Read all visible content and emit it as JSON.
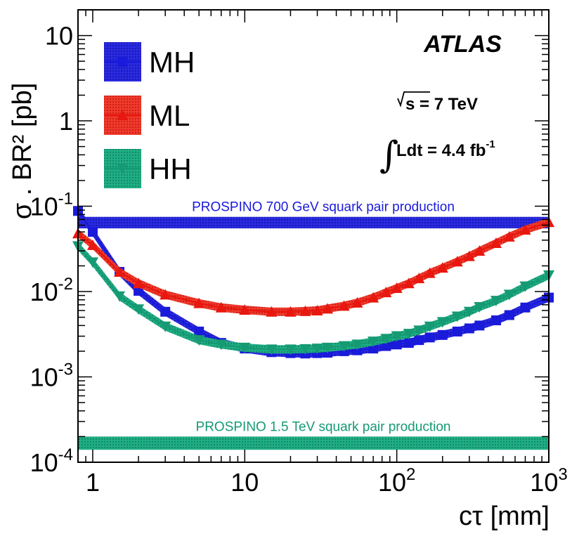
{
  "chart_data": {
    "type": "line",
    "title": "",
    "xlabel": "cτ [mm]",
    "ylabel": "σ . BR² [pb]",
    "xscale": "log",
    "yscale": "log",
    "xlim": [
      0.8,
      1000
    ],
    "ylim": [
      0.0001,
      20
    ],
    "x_ticks": [
      {
        "value": 1,
        "base": "1",
        "exp": ""
      },
      {
        "value": 10,
        "base": "10",
        "exp": ""
      },
      {
        "value": 100,
        "base": "10",
        "exp": "2"
      },
      {
        "value": 1000,
        "base": "10",
        "exp": "3"
      }
    ],
    "y_ticks": [
      {
        "value": 0.0001,
        "base": "10",
        "exp": "-4"
      },
      {
        "value": 0.001,
        "base": "10",
        "exp": "-3"
      },
      {
        "value": 0.01,
        "base": "10",
        "exp": "-2"
      },
      {
        "value": 0.1,
        "base": "10",
        "exp": "-1"
      },
      {
        "value": 1,
        "base": "1",
        "exp": ""
      },
      {
        "value": 10,
        "base": "10",
        "exp": ""
      }
    ],
    "series": [
      {
        "name": "MH",
        "color": "#1a1adb",
        "marker": "square",
        "x": [
          0.8,
          1,
          1.5,
          2,
          3,
          5,
          7,
          10,
          15,
          20,
          25,
          30,
          35,
          45,
          55,
          70,
          85,
          100,
          120,
          140,
          165,
          200,
          250,
          300,
          350,
          450,
          550,
          700,
          1000
        ],
        "values": [
          0.088,
          0.05,
          0.017,
          0.0102,
          0.0058,
          0.0034,
          0.0025,
          0.00215,
          0.00195,
          0.0019,
          0.00188,
          0.0019,
          0.00192,
          0.002,
          0.00205,
          0.00215,
          0.0023,
          0.0024,
          0.0025,
          0.0027,
          0.0029,
          0.0031,
          0.0034,
          0.0037,
          0.004,
          0.0046,
          0.0053,
          0.0065,
          0.0085
        ]
      },
      {
        "name": "ML",
        "color": "#e8170f",
        "marker": "triangle-up",
        "x": [
          0.8,
          1,
          1.5,
          2,
          3,
          5,
          7,
          10,
          15,
          20,
          25,
          30,
          35,
          45,
          55,
          70,
          85,
          100,
          120,
          140,
          165,
          200,
          250,
          300,
          350,
          450,
          550,
          700,
          1000
        ],
        "values": [
          0.048,
          0.035,
          0.017,
          0.0125,
          0.0092,
          0.0073,
          0.0065,
          0.0061,
          0.0058,
          0.0058,
          0.0059,
          0.006,
          0.0063,
          0.0068,
          0.0074,
          0.0085,
          0.0098,
          0.011,
          0.0125,
          0.0143,
          0.0165,
          0.019,
          0.0225,
          0.026,
          0.03,
          0.037,
          0.044,
          0.053,
          0.065
        ]
      },
      {
        "name": "HH",
        "color": "#159a74",
        "marker": "triangle-down",
        "x": [
          0.8,
          1,
          1.5,
          2,
          3,
          5,
          7,
          10,
          15,
          20,
          25,
          30,
          35,
          45,
          55,
          70,
          85,
          100,
          120,
          140,
          165,
          200,
          250,
          300,
          350,
          450,
          550,
          700,
          1000
        ],
        "values": [
          0.034,
          0.022,
          0.0088,
          0.0062,
          0.0039,
          0.0027,
          0.0024,
          0.0022,
          0.0021,
          0.0021,
          0.00212,
          0.00215,
          0.0022,
          0.0023,
          0.0024,
          0.0026,
          0.0028,
          0.003,
          0.0032,
          0.0035,
          0.0039,
          0.0044,
          0.0051,
          0.0058,
          0.0066,
          0.0078,
          0.0092,
          0.0115,
          0.0155
        ]
      }
    ],
    "bands": [
      {
        "name": "prospino-700",
        "label": "PROSPINO 700 GeV squark pair production",
        "low": 0.055,
        "high": 0.075,
        "color": "#1a1adb"
      },
      {
        "name": "prospino-1500",
        "label": "PROSPINO 1.5 TeV squark pair production",
        "low": 0.00014,
        "high": 0.0002,
        "color": "#159a74"
      }
    ],
    "legend": {
      "position": "top-left",
      "entries": [
        "MH",
        "ML",
        "HH"
      ]
    },
    "annotations": {
      "experiment": "ATLAS",
      "energy_prefix": "s",
      "energy_suffix": " = 7 TeV",
      "lumi_prefix": "Ldt = 4.4 fb",
      "lumi_exp": "-1"
    }
  }
}
